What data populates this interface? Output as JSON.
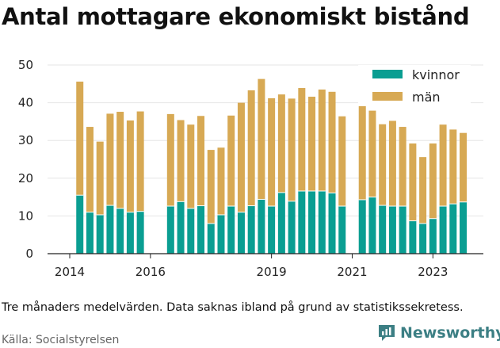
{
  "title": "Antal mottagare ekonomiskt bistånd",
  "note": "Tre månaders medelvärden. Data saknas ibland på grund av statistikssekretess.",
  "source": "Källa: Socialstyrelsen",
  "brand": "Newsworthy",
  "colors": {
    "kvinnor": "#0a9e92",
    "man": "#d7a954",
    "brand": "#3c7f84"
  },
  "chart_data": {
    "type": "bar",
    "stacked": true,
    "legend_position": "top-right",
    "ylim": [
      0,
      50
    ],
    "yticks": [
      0,
      10,
      20,
      30,
      40,
      50
    ],
    "xticks": [
      {
        "label": "2014",
        "x": 2014.0
      },
      {
        "label": "2016",
        "x": 2016.0
      },
      {
        "label": "2019",
        "x": 2019.0
      },
      {
        "label": "2021",
        "x": 2021.0
      },
      {
        "label": "2023",
        "x": 2023.0
      }
    ],
    "x": [
      2014.25,
      2014.5,
      2014.75,
      2015.0,
      2015.25,
      2015.5,
      2015.75,
      2016.5,
      2016.75,
      2017.0,
      2017.25,
      2017.5,
      2017.75,
      2018.0,
      2018.25,
      2018.5,
      2018.75,
      2019.0,
      2019.25,
      2019.5,
      2019.75,
      2020.0,
      2020.25,
      2020.5,
      2020.75,
      2021.25,
      2021.5,
      2021.75,
      2022.0,
      2022.25,
      2022.5,
      2022.75,
      2023.0,
      2023.25,
      2023.5,
      2023.75
    ],
    "series": [
      {
        "name": "kvinnor",
        "values": [
          15.5,
          11,
          10.3,
          12.8,
          12,
          11,
          11.2,
          12.6,
          13.8,
          12,
          12.7,
          8,
          10.3,
          12.6,
          11,
          12.7,
          14.4,
          12.6,
          16.2,
          13.9,
          16.6,
          16.6,
          16.6,
          16.1,
          12.6,
          14.3,
          15,
          12.8,
          12.6,
          12.6,
          8.7,
          8,
          9.3,
          12.6,
          13.2,
          13.7
        ]
      },
      {
        "name": "män",
        "values": [
          30.1,
          22.6,
          19.4,
          24.3,
          25.6,
          24.3,
          26.5,
          24.4,
          21.6,
          22.2,
          23.8,
          19.5,
          17.8,
          24,
          29,
          30.6,
          31.9,
          28.6,
          26,
          27.2,
          27.3,
          25,
          26.9,
          26.8,
          23.8,
          26.6,
          22.9,
          21.5,
          22.6,
          21,
          20.5,
          17.6,
          19.9,
          21.6,
          19.7,
          18.3
        ]
      }
    ]
  }
}
